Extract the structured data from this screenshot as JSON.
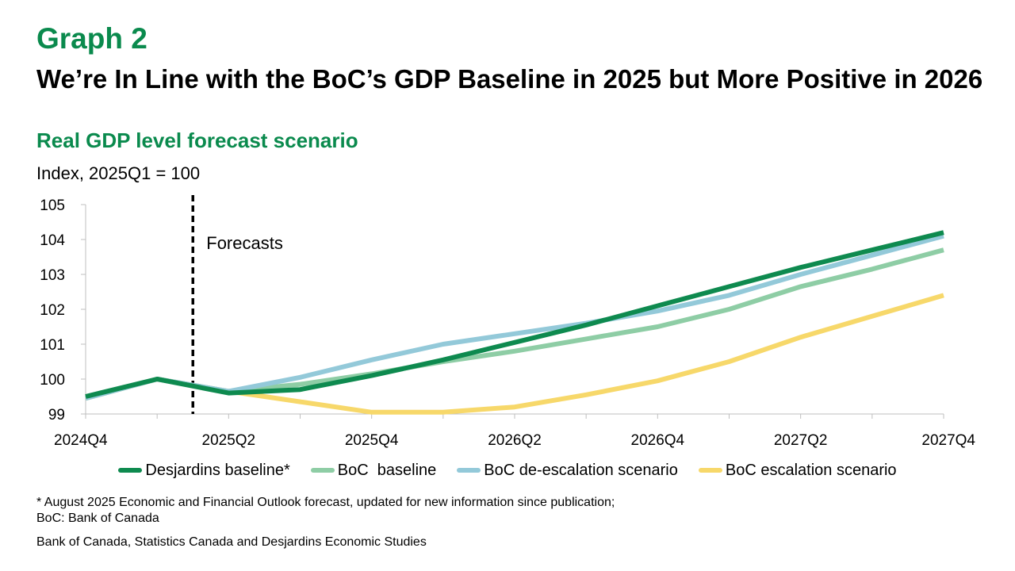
{
  "header": {
    "graph_label": "Graph 2",
    "title": "We’re In Line with the BoC’s GDP Baseline in 2025 but More Positive in 2026",
    "subtitle": "Real GDP level forecast scenario",
    "units": "Index, 2025Q1 = 100"
  },
  "chart_data": {
    "type": "line",
    "x": [
      "2024Q4",
      "2025Q1",
      "2025Q2",
      "2025Q3",
      "2025Q4",
      "2026Q1",
      "2026Q2",
      "2026Q3",
      "2026Q4",
      "2027Q1",
      "2027Q2",
      "2027Q3",
      "2027Q4"
    ],
    "x_tick_labels": [
      "2024Q4",
      "2025Q2",
      "2025Q4",
      "2026Q2",
      "2026Q4",
      "2027Q2",
      "2027Q4"
    ],
    "ylim": [
      99,
      105
    ],
    "y_ticks": [
      99,
      100,
      101,
      102,
      103,
      104,
      105
    ],
    "ylabel": "Index, 2025Q1 = 100",
    "annotation": {
      "label": "Forecasts",
      "after": "2025Q1"
    },
    "series": [
      {
        "name": "Desjardins baseline*",
        "color": "#0e8a4f",
        "values": [
          99.5,
          100.0,
          99.6,
          99.7,
          100.1,
          100.55,
          101.05,
          101.55,
          102.1,
          102.65,
          103.2,
          103.7,
          104.2
        ]
      },
      {
        "name": "BoC  baseline",
        "color": "#8ecda5",
        "values": [
          99.45,
          100.0,
          99.65,
          99.85,
          100.15,
          100.5,
          100.8,
          101.15,
          101.5,
          102.0,
          102.65,
          103.15,
          103.7
        ]
      },
      {
        "name": "BoC de-escalation scenario",
        "color": "#93c9d9",
        "values": [
          99.45,
          100.0,
          99.65,
          100.05,
          100.55,
          101.0,
          101.3,
          101.6,
          101.95,
          102.4,
          103.0,
          103.55,
          104.1
        ]
      },
      {
        "name": "BoC escalation scenario",
        "color": "#f7d86a",
        "values": [
          99.45,
          100.0,
          99.65,
          99.35,
          99.05,
          99.05,
          99.2,
          99.55,
          99.95,
          100.5,
          101.2,
          101.8,
          102.4
        ]
      }
    ]
  },
  "footer": {
    "footnote_1": "* August 2025 Economic and Financial Outlook forecast, updated for new information since publication;",
    "footnote_2": "BoC: Bank of Canada",
    "source": "Bank of Canada, Statistics Canada and Desjardins Economic Studies"
  }
}
